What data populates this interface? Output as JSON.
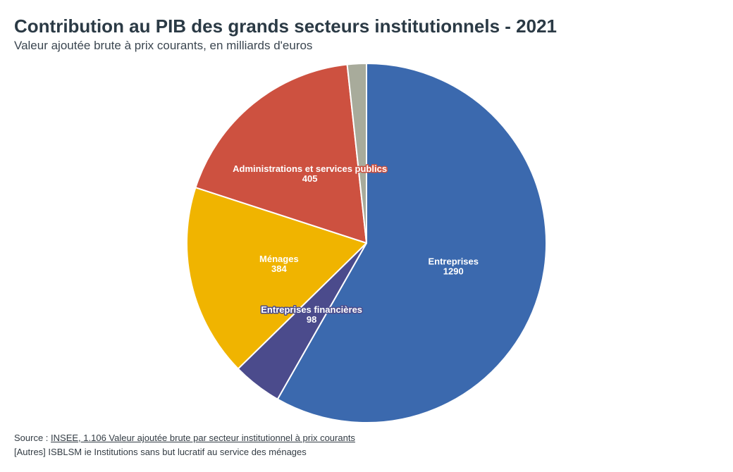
{
  "title": "Contribution au PIB des grands secteurs institutionnels - 2021",
  "subtitle": "Valeur ajoutée brute à prix courants, en milliards d'euros",
  "chart_data": {
    "type": "pie",
    "title": "Contribution au PIB des grands secteurs institutionnels - 2021",
    "subtitle": "Valeur ajoutée brute à prix courants, en milliards d'euros",
    "slices": [
      {
        "label": "Entreprises",
        "value": 1290,
        "color": "#3b69ae",
        "show_label": true
      },
      {
        "label": "Entreprises financières",
        "value": 98,
        "color": "#4b4b8c",
        "show_label": true
      },
      {
        "label": "Ménages",
        "value": 384,
        "color": "#f0b400",
        "show_label": true
      },
      {
        "label": "Administrations et services publics",
        "value": 405,
        "color": "#cd5140",
        "show_label": true
      },
      {
        "label": "Autres",
        "value": 38,
        "color": "#a8ab9b",
        "show_label": false
      }
    ]
  },
  "footer": {
    "source_prefix": "Source : ",
    "source_link": "INSEE, 1.106 Valeur ajoutée brute par secteur institutionnel à prix courants",
    "note": "[Autres] ISBLSM ie Institutions sans but lucratif au service des ménages"
  }
}
